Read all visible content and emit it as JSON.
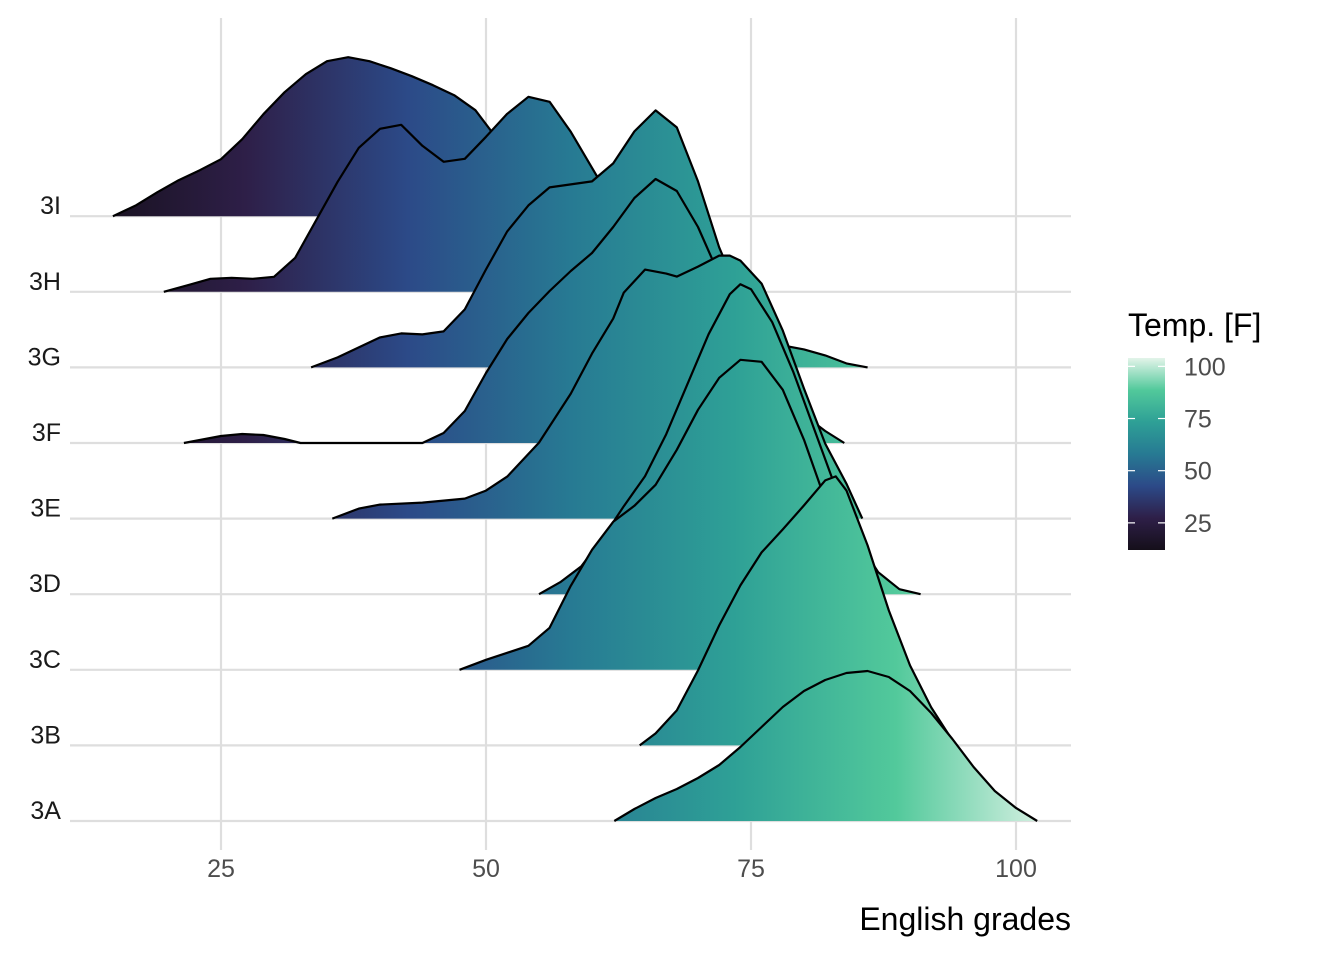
{
  "chart_data": {
    "type": "ridgeline",
    "xlabel": "English grades",
    "xlim": [
      9.5,
      106
    ],
    "x_ticks": [
      25,
      50,
      75,
      100
    ],
    "fill_by": "x",
    "legend": {
      "title": "Temp. [F]",
      "ticks": [
        25,
        50,
        75,
        100
      ],
      "range": [
        12,
        104
      ],
      "colors": [
        "#150f1a",
        "#2e1f48",
        "#2c4a88",
        "#277a93",
        "#2ea096",
        "#52c99b",
        "#e3f4e9"
      ],
      "placement": "right"
    },
    "series": [
      {
        "name": "3A",
        "points": [
          [
            62.1,
            0
          ],
          [
            64,
            0.12
          ],
          [
            66,
            0.23
          ],
          [
            68,
            0.32
          ],
          [
            70,
            0.43
          ],
          [
            72,
            0.56
          ],
          [
            74,
            0.74
          ],
          [
            76,
            0.94
          ],
          [
            78,
            1.14
          ],
          [
            80,
            1.3
          ],
          [
            82,
            1.41
          ],
          [
            84,
            1.48
          ],
          [
            86,
            1.5
          ],
          [
            88,
            1.44
          ],
          [
            90,
            1.3
          ],
          [
            92,
            1.08
          ],
          [
            94,
            0.82
          ],
          [
            96,
            0.54
          ],
          [
            98,
            0.3
          ],
          [
            100,
            0.13
          ],
          [
            102,
            0
          ]
        ]
      },
      {
        "name": "3B",
        "points": [
          [
            64.5,
            0
          ],
          [
            66,
            0.12
          ],
          [
            68,
            0.35
          ],
          [
            70,
            0.75
          ],
          [
            72,
            1.2
          ],
          [
            74,
            1.6
          ],
          [
            76,
            1.93
          ],
          [
            78,
            2.16
          ],
          [
            80,
            2.4
          ],
          [
            82,
            2.65
          ],
          [
            83,
            2.69
          ],
          [
            84,
            2.55
          ],
          [
            86,
            2.0
          ],
          [
            88,
            1.35
          ],
          [
            90,
            0.8
          ],
          [
            92,
            0.38
          ],
          [
            94.3,
            0
          ]
        ]
      },
      {
        "name": "3C",
        "points": [
          [
            47.5,
            0
          ],
          [
            50,
            0.1
          ],
          [
            52,
            0.17
          ],
          [
            54,
            0.24
          ],
          [
            56,
            0.42
          ],
          [
            58,
            0.84
          ],
          [
            60,
            1.2
          ],
          [
            62,
            1.48
          ],
          [
            64,
            1.64
          ],
          [
            66,
            1.85
          ],
          [
            68,
            2.2
          ],
          [
            70,
            2.6
          ],
          [
            72,
            2.92
          ],
          [
            74,
            3.1
          ],
          [
            76,
            3.08
          ],
          [
            78,
            2.8
          ],
          [
            80,
            2.3
          ],
          [
            82,
            1.7
          ],
          [
            84,
            1.08
          ],
          [
            86,
            0.55
          ],
          [
            88,
            0.16
          ],
          [
            89.5,
            0
          ]
        ]
      },
      {
        "name": "3D",
        "points": [
          [
            55,
            0
          ],
          [
            57,
            0.12
          ],
          [
            59,
            0.28
          ],
          [
            61,
            0.56
          ],
          [
            63,
            0.88
          ],
          [
            65,
            1.18
          ],
          [
            67,
            1.6
          ],
          [
            69,
            2.1
          ],
          [
            71,
            2.6
          ],
          [
            73,
            3.0
          ],
          [
            74,
            3.1
          ],
          [
            75,
            3.05
          ],
          [
            77,
            2.72
          ],
          [
            79,
            2.22
          ],
          [
            81,
            1.64
          ],
          [
            83,
            1.06
          ],
          [
            85,
            0.55
          ],
          [
            87,
            0.22
          ],
          [
            89,
            0.05
          ],
          [
            91,
            0
          ]
        ]
      },
      {
        "name": "3E",
        "points": [
          [
            35.5,
            0
          ],
          [
            38,
            0.1
          ],
          [
            40,
            0.14
          ],
          [
            44,
            0.16
          ],
          [
            48,
            0.2
          ],
          [
            50,
            0.28
          ],
          [
            52,
            0.42
          ],
          [
            55,
            0.76
          ],
          [
            58,
            1.25
          ],
          [
            60,
            1.65
          ],
          [
            62,
            2.0
          ],
          [
            63,
            2.26
          ],
          [
            65,
            2.49
          ],
          [
            67,
            2.45
          ],
          [
            68,
            2.42
          ],
          [
            70,
            2.52
          ],
          [
            72,
            2.63
          ],
          [
            73,
            2.63
          ],
          [
            74,
            2.58
          ],
          [
            76,
            2.35
          ],
          [
            78,
            1.88
          ],
          [
            80,
            1.3
          ],
          [
            82,
            0.75
          ],
          [
            84,
            0.35
          ],
          [
            85.5,
            0
          ]
        ]
      },
      {
        "name": "3F",
        "points": [
          [
            21.5,
            0
          ],
          [
            23,
            0.03
          ],
          [
            25,
            0.07
          ],
          [
            27,
            0.09
          ],
          [
            29,
            0.08
          ],
          [
            31,
            0.04
          ],
          [
            32.5,
            0
          ],
          [
            44,
            0
          ],
          [
            46,
            0.1
          ],
          [
            48,
            0.32
          ],
          [
            50,
            0.7
          ],
          [
            52,
            1.04
          ],
          [
            54,
            1.3
          ],
          [
            56,
            1.52
          ],
          [
            58,
            1.72
          ],
          [
            60,
            1.9
          ],
          [
            62,
            2.16
          ],
          [
            64,
            2.45
          ],
          [
            66,
            2.64
          ],
          [
            68,
            2.52
          ],
          [
            70,
            2.16
          ],
          [
            72,
            1.68
          ],
          [
            74,
            1.28
          ],
          [
            76,
            0.9
          ],
          [
            78,
            0.55
          ],
          [
            80,
            0.28
          ],
          [
            82,
            0.12
          ],
          [
            83.8,
            0
          ]
        ]
      },
      {
        "name": "3G",
        "points": [
          [
            33.5,
            0
          ],
          [
            36,
            0.1
          ],
          [
            38,
            0.2
          ],
          [
            40,
            0.3
          ],
          [
            42,
            0.34
          ],
          [
            44,
            0.33
          ],
          [
            46,
            0.36
          ],
          [
            48,
            0.58
          ],
          [
            50,
            0.98
          ],
          [
            52,
            1.36
          ],
          [
            54,
            1.62
          ],
          [
            56,
            1.8
          ],
          [
            60,
            1.86
          ],
          [
            62,
            2.04
          ],
          [
            64,
            2.36
          ],
          [
            66,
            2.57
          ],
          [
            68,
            2.4
          ],
          [
            70,
            1.86
          ],
          [
            72,
            1.2
          ],
          [
            74,
            0.7
          ],
          [
            76,
            0.4
          ],
          [
            78,
            0.22
          ],
          [
            80,
            0.18
          ],
          [
            82,
            0.12
          ],
          [
            84,
            0.04
          ],
          [
            86,
            0
          ]
        ]
      },
      {
        "name": "3H",
        "points": [
          [
            19.6,
            0
          ],
          [
            22,
            0.07
          ],
          [
            24,
            0.13
          ],
          [
            26,
            0.14
          ],
          [
            28,
            0.13
          ],
          [
            30,
            0.15
          ],
          [
            32,
            0.34
          ],
          [
            34,
            0.72
          ],
          [
            36,
            1.1
          ],
          [
            38,
            1.44
          ],
          [
            40,
            1.63
          ],
          [
            42,
            1.67
          ],
          [
            44,
            1.46
          ],
          [
            46,
            1.3
          ],
          [
            48,
            1.33
          ],
          [
            50,
            1.55
          ],
          [
            52,
            1.78
          ],
          [
            54,
            1.95
          ],
          [
            56,
            1.9
          ],
          [
            58,
            1.6
          ],
          [
            60,
            1.24
          ],
          [
            62,
            0.88
          ],
          [
            64,
            0.55
          ],
          [
            66,
            0.3
          ],
          [
            68,
            0.12
          ],
          [
            70,
            0.05
          ],
          [
            72,
            0.03
          ],
          [
            74,
            0
          ]
        ]
      },
      {
        "name": "3I",
        "points": [
          [
            14.8,
            0
          ],
          [
            17,
            0.11
          ],
          [
            19,
            0.24
          ],
          [
            21,
            0.36
          ],
          [
            23,
            0.46
          ],
          [
            25,
            0.57
          ],
          [
            27,
            0.77
          ],
          [
            29,
            1.02
          ],
          [
            31,
            1.24
          ],
          [
            33,
            1.42
          ],
          [
            35,
            1.55
          ],
          [
            37,
            1.59
          ],
          [
            39,
            1.55
          ],
          [
            41,
            1.48
          ],
          [
            43,
            1.4
          ],
          [
            45,
            1.31
          ],
          [
            47,
            1.21
          ],
          [
            49,
            1.06
          ],
          [
            51,
            0.78
          ],
          [
            53,
            0.46
          ],
          [
            55,
            0.22
          ],
          [
            57,
            0.07
          ],
          [
            59.5,
            0
          ]
        ]
      }
    ]
  }
}
